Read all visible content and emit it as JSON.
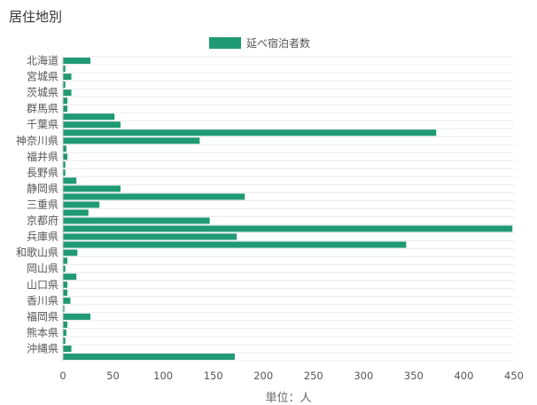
{
  "title": "居住地別",
  "chart_data": {
    "type": "bar",
    "orientation": "horizontal",
    "series": [
      {
        "name": "延べ宿泊者数",
        "color": "#1f9a72",
        "values": [
          27,
          2,
          8,
          2,
          8,
          4,
          4,
          51,
          57,
          372,
          136,
          3,
          4,
          2,
          2,
          13,
          57,
          181,
          36,
          25,
          146,
          448,
          173,
          342,
          14,
          4,
          2,
          13,
          4,
          4,
          7,
          1,
          27,
          4,
          3,
          2,
          8,
          171
        ]
      }
    ],
    "categories": [
      "北海道",
      "",
      "宮城県",
      "",
      "茨城県",
      "",
      "群馬県",
      "",
      "千葉県",
      "",
      "神奈川県",
      "",
      "福井県",
      "",
      "長野県",
      "",
      "静岡県",
      "",
      "三重県",
      "",
      "京都府",
      "",
      "兵庫県",
      "",
      "和歌山県",
      "",
      "岡山県",
      "",
      "山口県",
      "",
      "香川県",
      "",
      "福岡県",
      "",
      "熊本県",
      "",
      "沖縄県",
      ""
    ],
    "xlim": [
      0,
      450
    ],
    "xticks": [
      0,
      50,
      100,
      150,
      200,
      250,
      300,
      350,
      400,
      450
    ],
    "xlabel": "単位：人",
    "ylabel": "",
    "grid": true,
    "legend": "top-center"
  }
}
